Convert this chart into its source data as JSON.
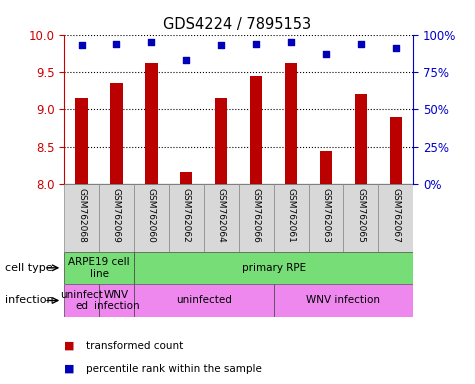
{
  "title": "GDS4224 / 7895153",
  "samples": [
    "GSM762068",
    "GSM762069",
    "GSM762060",
    "GSM762062",
    "GSM762064",
    "GSM762066",
    "GSM762061",
    "GSM762063",
    "GSM762065",
    "GSM762067"
  ],
  "transformed_counts": [
    9.15,
    9.35,
    9.62,
    8.17,
    9.15,
    9.45,
    9.62,
    8.45,
    9.2,
    8.9
  ],
  "percentile_ranks": [
    93,
    94,
    95,
    83,
    93,
    94,
    95,
    87,
    94,
    91
  ],
  "ylim_left": [
    8.0,
    10.0
  ],
  "ylim_right": [
    0,
    100
  ],
  "yticks_left": [
    8.0,
    8.5,
    9.0,
    9.5,
    10.0
  ],
  "yticks_right": [
    0,
    25,
    50,
    75,
    100
  ],
  "bar_color": "#bb0000",
  "dot_color": "#0000bb",
  "bar_width": 0.5,
  "cell_type_labels": [
    {
      "label": "ARPE19 cell\nline",
      "start": 0,
      "end": 2,
      "color": "#77dd77"
    },
    {
      "label": "primary RPE",
      "start": 2,
      "end": 10,
      "color": "#77dd77"
    }
  ],
  "infection_labels": [
    {
      "label": "uninfect\ned",
      "start": 0,
      "end": 1,
      "color": "#ee88ee"
    },
    {
      "label": "WNV\ninfection",
      "start": 1,
      "end": 2,
      "color": "#ee88ee"
    },
    {
      "label": "uninfected",
      "start": 2,
      "end": 6,
      "color": "#ee88ee"
    },
    {
      "label": "WNV infection",
      "start": 6,
      "end": 10,
      "color": "#ee88ee"
    }
  ],
  "legend_items": [
    {
      "color": "#bb0000",
      "label": "transformed count"
    },
    {
      "color": "#0000bb",
      "label": "percentile rank within the sample"
    }
  ],
  "tick_label_color_left": "#cc0000",
  "tick_label_color_right": "#0000cc"
}
